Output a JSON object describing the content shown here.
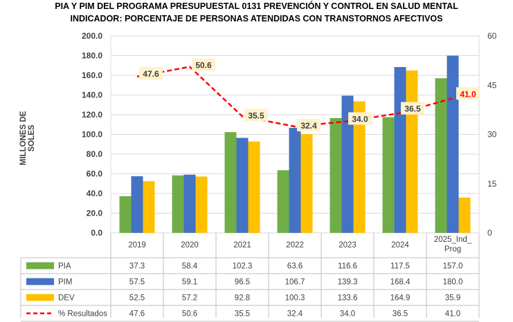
{
  "title_line1": "PIA Y PIM DEL PROGRAMA PRESUPUESTAL 0131 PREVENCIÓN Y CONTROL EN SALUD MENTAL",
  "title_line2": "INDICADOR: PORCENTAJE DE PERSONAS ATENDIDAS CON TRANSTORNOS AFECTIVOS",
  "chart_data": {
    "type": "bar",
    "categories": [
      "2019",
      "2020",
      "2021",
      "2022",
      "2023",
      "2024",
      "2025_Ind_\nProg"
    ],
    "ylabel": "MILLONES DE SOLES",
    "ylim": [
      0,
      200
    ],
    "yticks": [
      "0.0",
      "20.0",
      "40.0",
      "60.0",
      "80.0",
      "100.0",
      "120.0",
      "140.0",
      "160.0",
      "180.0",
      "200.0"
    ],
    "y2lim": [
      0,
      60
    ],
    "y2ticks": [
      "0",
      "15",
      "30",
      "45",
      "60"
    ],
    "grid": true,
    "legend": "data-table",
    "series": [
      {
        "name": "PIA",
        "color": "#70ad47",
        "values": [
          37.3,
          58.4,
          102.3,
          63.6,
          116.6,
          117.5,
          157.0
        ],
        "labels": [
          "37.3",
          "58.4",
          "102.3",
          "63.6",
          "116.6",
          "117.5",
          "157.0"
        ]
      },
      {
        "name": "PIM",
        "color": "#4472c4",
        "values": [
          57.5,
          59.1,
          96.5,
          106.7,
          139.3,
          168.4,
          180.0
        ],
        "labels": [
          "57.5",
          "59.1",
          "96.5",
          "106.7",
          "139.3",
          "168.4",
          "180.0"
        ]
      },
      {
        "name": "DEV",
        "color": "#ffc000",
        "values": [
          52.5,
          57.2,
          92.8,
          100.3,
          133.6,
          164.9,
          35.9
        ],
        "labels": [
          "52.5",
          "57.2",
          "92.8",
          "100.3",
          "133.6",
          "164.9",
          "35.9"
        ]
      },
      {
        "name": "% Resultados",
        "type": "line",
        "axis": "right",
        "color": "#ff0000",
        "dash": "dashed",
        "values": [
          47.6,
          50.6,
          35.5,
          32.4,
          34.0,
          36.5,
          41.0
        ],
        "labels": [
          "47.6",
          "50.6",
          "35.5",
          "32.4",
          "34.0",
          "36.5",
          "41.0"
        ]
      }
    ]
  }
}
